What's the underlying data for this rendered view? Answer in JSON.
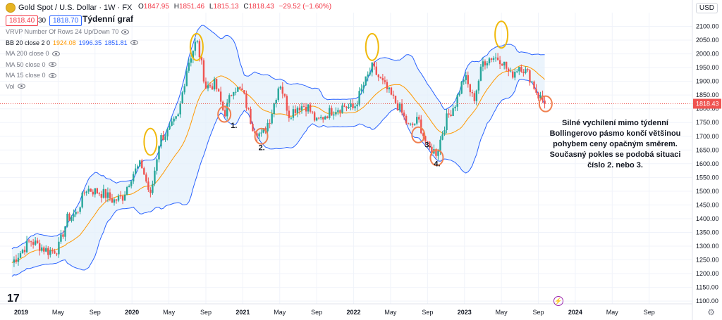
{
  "header": {
    "symbol": "Gold Spot / U.S. Dollar · 1W · FX",
    "ohlc": [
      {
        "k": "O",
        "v": "1847.95"
      },
      {
        "k": "H",
        "v": "1851.46"
      },
      {
        "k": "L",
        "v": "1815.13"
      },
      {
        "k": "C",
        "v": "1818.43"
      },
      {
        "k": "",
        "v": "−29.52 (−1.60%)"
      }
    ],
    "bid": "1818.40",
    "spread": "30",
    "ask": "1818.70",
    "subtitle": "Týdenní graf",
    "currency": "USD"
  },
  "indicators": [
    {
      "label": "VRVP Number Of Rows 24 Up/Down 70",
      "values": []
    },
    {
      "label": "BB 20 close 2 0",
      "values": [
        {
          "v": "1924.08",
          "color": "#ff9800"
        },
        {
          "v": "1996.35",
          "color": "#2962ff"
        },
        {
          "v": "1851.81",
          "color": "#2962ff"
        }
      ]
    },
    {
      "label": "MA 200 close 0",
      "values": []
    },
    {
      "label": "MA 50 close 0",
      "values": []
    },
    {
      "label": "MA 15 close 0",
      "values": []
    },
    {
      "label": "Vol",
      "values": []
    }
  ],
  "annotation": "Silné vychílení mimo týdenní Bollingerovo pásmo končí většinou pohybem ceny opačným směrem. Současný pokles se podobá situaci číslo 2. nebo 3.",
  "colors": {
    "up": "#26a69a",
    "down": "#ef5350",
    "band": "#2962ff",
    "basis": "#ff9800",
    "bandFill": "#e3f0fb",
    "highlightYellow": "#f0b90b",
    "highlightOrange": "#f08050"
  },
  "chart_data": {
    "type": "candlestick",
    "last_price": "1818.43",
    "ylim": [
      1090,
      2150
    ],
    "y_ticks": [
      "1100.00",
      "1150.00",
      "1200.00",
      "1250.00",
      "1300.00",
      "1350.00",
      "1400.00",
      "1450.00",
      "1500.00",
      "1550.00",
      "1600.00",
      "1650.00",
      "1700.00",
      "1750.00",
      "1800.00",
      "1850.00",
      "1900.00",
      "1950.00",
      "2000.00",
      "2050.00",
      "2100.00"
    ],
    "x_ticks": [
      "2019",
      "May",
      "Sep",
      "2020",
      "May",
      "Sep",
      "2021",
      "May",
      "Sep",
      "2022",
      "May",
      "Sep",
      "2023",
      "May",
      "Sep",
      "2024",
      "May",
      "Sep"
    ],
    "x_tick_dates": [
      "2019-01",
      "2019-05",
      "2019-09",
      "2020-01",
      "2020-05",
      "2020-09",
      "2021-01",
      "2021-05",
      "2021-09",
      "2022-01",
      "2022-05",
      "2022-09",
      "2023-01",
      "2023-05",
      "2023-09",
      "2024-01",
      "2024-05",
      "2024-09"
    ],
    "price_path": [
      [
        "2018-12",
        1240
      ],
      [
        "2019-01",
        1280
      ],
      [
        "2019-02",
        1320
      ],
      [
        "2019-03",
        1300
      ],
      [
        "2019-04",
        1280
      ],
      [
        "2019-05",
        1290
      ],
      [
        "2019-06",
        1400
      ],
      [
        "2019-07",
        1420
      ],
      [
        "2019-08",
        1510
      ],
      [
        "2019-09",
        1500
      ],
      [
        "2019-10",
        1490
      ],
      [
        "2019-11",
        1465
      ],
      [
        "2019-12",
        1480
      ],
      [
        "2020-01",
        1560
      ],
      [
        "2020-02",
        1600
      ],
      [
        "2020-03",
        1480
      ],
      [
        "2020-04",
        1690
      ],
      [
        "2020-05",
        1720
      ],
      [
        "2020-06",
        1770
      ],
      [
        "2020-07",
        1960
      ],
      [
        "2020-08",
        2050
      ],
      [
        "2020-09",
        1880
      ],
      [
        "2020-10",
        1890
      ],
      [
        "2020-11",
        1780
      ],
      [
        "2020-12",
        1880
      ],
      [
        "2021-01",
        1860
      ],
      [
        "2021-02",
        1740
      ],
      [
        "2021-03",
        1700
      ],
      [
        "2021-04",
        1770
      ],
      [
        "2021-05",
        1900
      ],
      [
        "2021-06",
        1780
      ],
      [
        "2021-07",
        1810
      ],
      [
        "2021-08",
        1810
      ],
      [
        "2021-09",
        1750
      ],
      [
        "2021-10",
        1780
      ],
      [
        "2021-11",
        1800
      ],
      [
        "2021-12",
        1810
      ],
      [
        "2022-01",
        1800
      ],
      [
        "2022-02",
        1880
      ],
      [
        "2022-03",
        1950
      ],
      [
        "2022-04",
        1900
      ],
      [
        "2022-05",
        1850
      ],
      [
        "2022-06",
        1800
      ],
      [
        "2022-07",
        1730
      ],
      [
        "2022-08",
        1760
      ],
      [
        "2022-09",
        1660
      ],
      [
        "2022-10",
        1640
      ],
      [
        "2022-11",
        1760
      ],
      [
        "2022-12",
        1820
      ],
      [
        "2023-01",
        1920
      ],
      [
        "2023-02",
        1830
      ],
      [
        "2023-03",
        1970
      ],
      [
        "2023-04",
        1990
      ],
      [
        "2023-05",
        1980
      ],
      [
        "2023-06",
        1920
      ],
      [
        "2023-07",
        1960
      ],
      [
        "2023-08",
        1920
      ],
      [
        "2023-09",
        1848
      ],
      [
        "2023-09-25",
        1818
      ]
    ],
    "bollinger": {
      "period": 20,
      "stddev": 2
    },
    "labels": [
      {
        "text": "1.",
        "date": "2020-12",
        "price": 1730
      },
      {
        "text": "2.",
        "date": "2021-03",
        "price": 1650
      },
      {
        "text": "3.",
        "date": "2022-09",
        "price": 1660
      },
      {
        "text": "4.",
        "date": "2022-10",
        "price": 1590
      }
    ],
    "yellow_circles": [
      {
        "date": "2020-03",
        "price": 1680
      },
      {
        "date": "2020-08",
        "price": 2025
      },
      {
        "date": "2022-03",
        "price": 2025
      },
      {
        "date": "2023-05",
        "price": 2070
      }
    ],
    "orange_circles": [
      {
        "date": "2020-11",
        "price": 1780
      },
      {
        "date": "2021-03",
        "price": 1700
      },
      {
        "date": "2022-08",
        "price": 1705
      },
      {
        "date": "2022-10",
        "price": 1622
      },
      {
        "date": "2023-09-25",
        "price": 1818
      }
    ]
  }
}
